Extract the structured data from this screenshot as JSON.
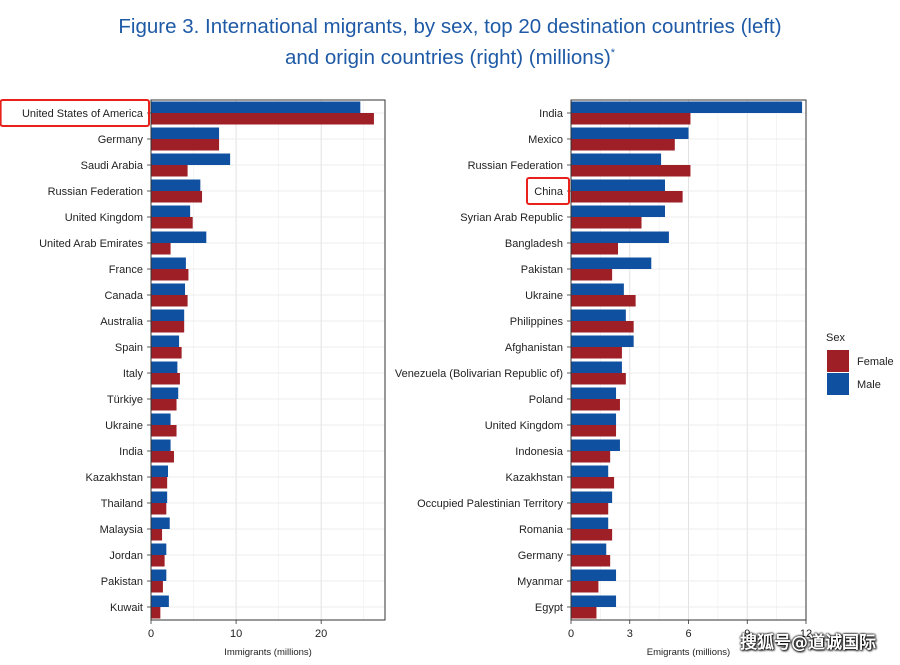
{
  "page": {
    "title_line1": "Figure 3. International migrants, by sex, top 20 destination countries (left)",
    "title_line2": "and origin countries (right) (millions)",
    "title_sup": "*",
    "watermark": "搜狐号@道诚国际"
  },
  "colors": {
    "female": "#9e1f25",
    "male": "#1050a0",
    "highlight": "#e8221b",
    "title": "#1f5aa6"
  },
  "legend": {
    "title": "Sex",
    "items": [
      "Female",
      "Male"
    ]
  },
  "chart_data": [
    {
      "type": "bar",
      "orientation": "horizontal",
      "xlabel": "Immigrants (millions)",
      "xlim": [
        0,
        27.5
      ],
      "xticks": [
        0,
        10,
        20
      ],
      "grid": true,
      "highlighted_category": "United States of America",
      "categories": [
        "United States of America",
        "Germany",
        "Saudi Arabia",
        "Russian Federation",
        "United Kingdom",
        "United Arab Emirates",
        "France",
        "Canada",
        "Australia",
        "Spain",
        "Italy",
        "Türkiye",
        "Ukraine",
        "India",
        "Kazakhstan",
        "Thailand",
        "Malaysia",
        "Jordan",
        "Pakistan",
        "Kuwait"
      ],
      "series": [
        {
          "name": "Male",
          "values": [
            24.6,
            8.0,
            9.3,
            5.8,
            4.6,
            6.5,
            4.1,
            4.0,
            3.9,
            3.3,
            3.1,
            3.2,
            2.3,
            2.3,
            2.0,
            1.9,
            2.2,
            1.8,
            1.8,
            2.1
          ]
        },
        {
          "name": "Female",
          "values": [
            26.2,
            8.0,
            4.3,
            6.0,
            4.9,
            2.3,
            4.4,
            4.3,
            3.9,
            3.6,
            3.4,
            3.0,
            3.0,
            2.7,
            1.9,
            1.8,
            1.3,
            1.6,
            1.4,
            1.1
          ]
        }
      ]
    },
    {
      "type": "bar",
      "orientation": "horizontal",
      "xlabel": "Emigrants (millions)",
      "xlim": [
        0,
        12
      ],
      "xticks": [
        0,
        3,
        6,
        9,
        12
      ],
      "grid": true,
      "highlighted_category": "China",
      "categories": [
        "India",
        "Mexico",
        "Russian Federation",
        "China",
        "Syrian Arab Republic",
        "Bangladesh",
        "Pakistan",
        "Ukraine",
        "Philippines",
        "Afghanistan",
        "Venezuela (Bolivarian Republic of)",
        "Poland",
        "United Kingdom",
        "Indonesia",
        "Kazakhstan",
        "Occupied Palestinian Territory",
        "Romania",
        "Germany",
        "Myanmar",
        "Egypt"
      ],
      "series": [
        {
          "name": "Male",
          "values": [
            11.8,
            6.0,
            4.6,
            4.8,
            4.8,
            5.0,
            4.1,
            2.7,
            2.8,
            3.2,
            2.6,
            2.3,
            2.3,
            2.5,
            1.9,
            2.1,
            1.9,
            1.8,
            2.3,
            2.3
          ]
        },
        {
          "name": "Female",
          "values": [
            6.1,
            5.3,
            6.1,
            5.7,
            3.6,
            2.4,
            2.1,
            3.3,
            3.2,
            2.6,
            2.8,
            2.5,
            2.3,
            2.0,
            2.2,
            1.9,
            2.1,
            2.0,
            1.4,
            1.3
          ]
        }
      ]
    }
  ]
}
